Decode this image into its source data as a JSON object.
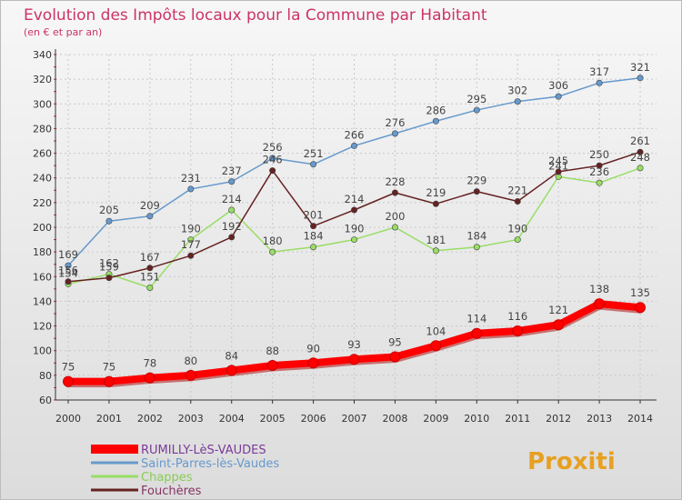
{
  "chart_data": {
    "type": "line",
    "title": "Evolution des Impôts locaux pour la Commune par Habitant",
    "subtitle": "(en € et par an)",
    "x": [
      "2000",
      "2001",
      "2002",
      "2003",
      "2004",
      "2005",
      "2006",
      "2007",
      "2008",
      "2009",
      "2010",
      "2011",
      "2012",
      "2013",
      "2014"
    ],
    "ylim": [
      60,
      340
    ],
    "yticks": [
      60,
      80,
      100,
      120,
      140,
      160,
      180,
      200,
      220,
      240,
      260,
      280,
      300,
      320,
      340
    ],
    "grid": true,
    "legend_position": "bottom-left",
    "series": [
      {
        "name": "RUMILLY-LèS-VAUDES",
        "color": "#ff0000",
        "values": [
          75,
          75,
          78,
          80,
          84,
          88,
          90,
          93,
          95,
          104,
          114,
          116,
          121,
          138,
          135
        ]
      },
      {
        "name": "Saint-Parres-lès-Vaudes",
        "color": "#6699cc",
        "values": [
          169,
          205,
          209,
          231,
          237,
          256,
          251,
          266,
          276,
          286,
          295,
          302,
          306,
          317,
          321
        ]
      },
      {
        "name": "Chappes",
        "color": "#99dd66",
        "values": [
          154,
          162,
          151,
          190,
          214,
          180,
          184,
          190,
          200,
          181,
          184,
          190,
          241,
          236,
          248
        ]
      },
      {
        "name": "Fouchères",
        "color": "#662222",
        "values": [
          156,
          159,
          167,
          177,
          192,
          246,
          201,
          214,
          228,
          219,
          229,
          221,
          245,
          250,
          261
        ]
      }
    ]
  },
  "branding": {
    "logo_text": "Proxiti"
  }
}
